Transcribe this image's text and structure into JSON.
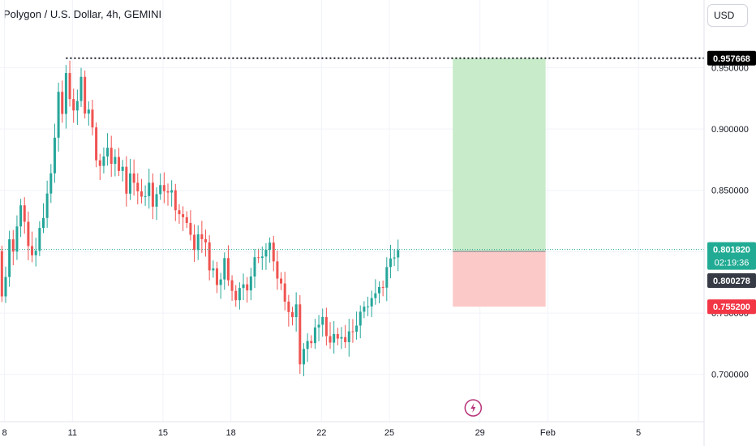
{
  "header": {
    "title": "Polygon / U.S. Dollar, 4h, GEMINI",
    "currency_button": "USD"
  },
  "colors": {
    "up": "#26a69a",
    "down": "#ef5350",
    "profit_zone": "#c8ebc9",
    "loss_zone": "#fcc9c9",
    "grid": "#f0f3fa"
  },
  "markers": {
    "event_icon": "lightning-bolt-icon"
  },
  "price_tags": [
    {
      "label": "0.957668",
      "role": "high-line",
      "bg": "#000000"
    },
    {
      "label": "0.801820",
      "role": "last-price",
      "bg": "#22ab94",
      "sub": "02:19:36"
    },
    {
      "label": "0.800278",
      "role": "entry",
      "bg": "#363a45"
    },
    {
      "label": "0.755200",
      "role": "stop",
      "bg": "#f23645"
    }
  ],
  "chart_data": {
    "type": "candlestick",
    "title": "Polygon / U.S. Dollar, 4h, GEMINI",
    "y_axis": {
      "ticks": [
        "0.950000",
        "0.900000",
        "0.850000",
        "0.800000",
        "0.750000",
        "0.700000"
      ],
      "range": [
        0.68,
        0.98
      ]
    },
    "x_axis": {
      "ticks": [
        "8",
        "11",
        "15",
        "18",
        "22",
        "25",
        "29",
        "Feb",
        "5"
      ],
      "tick_day": [
        8,
        11,
        15,
        18,
        22,
        25,
        29,
        32,
        36
      ],
      "range_day": [
        7.8,
        38.9
      ]
    },
    "last_price": 0.80182,
    "countdown": "02:19:36",
    "high_line": 0.957668,
    "position": {
      "entry": 0.800278,
      "stop": 0.7552,
      "target": 0.957668,
      "start_day": 27.8,
      "end_day": 31.9
    },
    "closes": [
      0.8352,
      0.8005,
      0.7636,
      0.7794,
      0.8101,
      0.8001,
      0.8206,
      0.8378,
      0.8244,
      0.8046,
      0.7971,
      0.8008,
      0.8194,
      0.8275,
      0.8474,
      0.8639,
      0.8929,
      0.9303,
      0.9123,
      0.9456,
      0.9244,
      0.9151,
      0.9228,
      0.9425,
      0.9126,
      0.9158,
      0.9013,
      0.8745,
      0.8699,
      0.8776,
      0.8847,
      0.8716,
      0.8772,
      0.8658,
      0.8692,
      0.8473,
      0.8638,
      0.8562,
      0.8492,
      0.8449,
      0.8453,
      0.8562,
      0.8367,
      0.8469,
      0.8543,
      0.8493,
      0.8482,
      0.8501,
      0.8338,
      0.8306,
      0.8281,
      0.8234,
      0.8138,
      0.8014,
      0.8142,
      0.8102,
      0.8076,
      0.7848,
      0.7864,
      0.7729,
      0.7774,
      0.7948,
      0.7767,
      0.7681,
      0.7605,
      0.7704,
      0.7734,
      0.7685,
      0.7798,
      0.7955,
      0.7949,
      0.7961,
      0.8015,
      0.8074,
      0.7921,
      0.7781,
      0.7741,
      0.7593,
      0.7508,
      0.7467,
      0.7571,
      0.7082,
      0.7208,
      0.7272,
      0.7255,
      0.7383,
      0.7405,
      0.7468,
      0.7312,
      0.7259,
      0.7329,
      0.7292,
      0.7304,
      0.7263,
      0.7351,
      0.7348,
      0.7398,
      0.7511,
      0.7552,
      0.7554,
      0.7622,
      0.7661,
      0.7712,
      0.7707,
      0.7875,
      0.7945,
      0.7953,
      0.8013
    ]
  }
}
